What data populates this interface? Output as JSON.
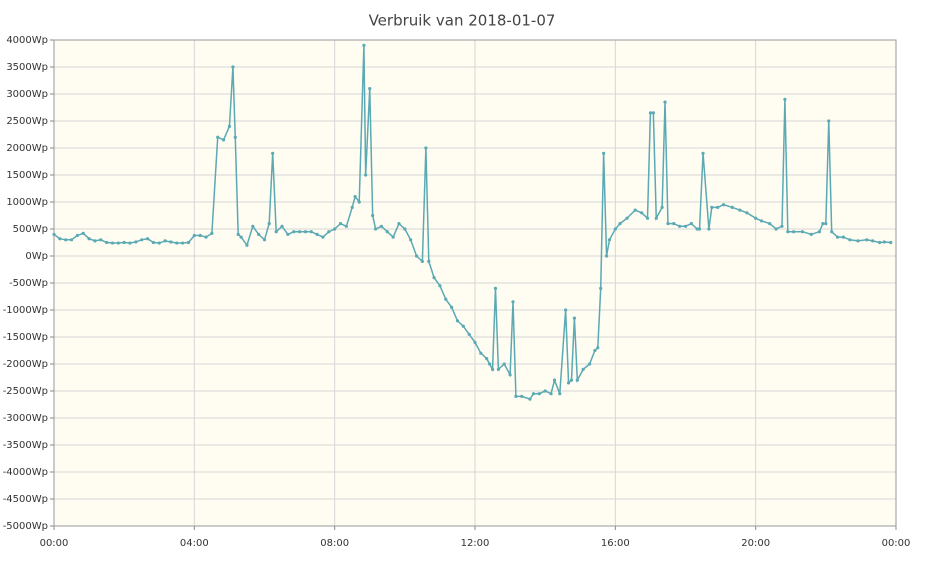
{
  "chart_data": {
    "type": "line",
    "title": "Verbruik van 2018-01-07",
    "color": "#5aa9b3",
    "grid": true,
    "xlim": [
      0,
      1440
    ],
    "xticks": [
      {
        "value": 0,
        "label": "00:00"
      },
      {
        "value": 240,
        "label": "04:00"
      },
      {
        "value": 480,
        "label": "08:00"
      },
      {
        "value": 720,
        "label": "12:00"
      },
      {
        "value": 960,
        "label": "16:00"
      },
      {
        "value": 1200,
        "label": "20:00"
      },
      {
        "value": 1440,
        "label": "00:00"
      }
    ],
    "ylim": [
      -5000,
      4000
    ],
    "yticks": [
      {
        "value": 4000,
        "label": "4000Wp"
      },
      {
        "value": 3500,
        "label": "3500Wp"
      },
      {
        "value": 3000,
        "label": "3000Wp"
      },
      {
        "value": 2500,
        "label": "2500Wp"
      },
      {
        "value": 2000,
        "label": "2000Wp"
      },
      {
        "value": 1500,
        "label": "1500Wp"
      },
      {
        "value": 1000,
        "label": "1000Wp"
      },
      {
        "value": 500,
        "label": "500Wp"
      },
      {
        "value": 0,
        "label": "0Wp"
      },
      {
        "value": -500,
        "label": "-500Wp"
      },
      {
        "value": -1000,
        "label": "-1000Wp"
      },
      {
        "value": -1500,
        "label": "-1500Wp"
      },
      {
        "value": -2000,
        "label": "-2000Wp"
      },
      {
        "value": -2500,
        "label": "-2500Wp"
      },
      {
        "value": -3000,
        "label": "-3000Wp"
      },
      {
        "value": -3500,
        "label": "-3500Wp"
      },
      {
        "value": -4000,
        "label": "-4000Wp"
      },
      {
        "value": -4500,
        "label": "-4500Wp"
      },
      {
        "value": -5000,
        "label": "-5000Wp"
      }
    ],
    "x": [
      0,
      10,
      20,
      30,
      40,
      50,
      60,
      70,
      80,
      90,
      100,
      110,
      120,
      130,
      140,
      150,
      160,
      170,
      180,
      190,
      200,
      210,
      220,
      230,
      240,
      250,
      260,
      270,
      280,
      290,
      300,
      306,
      310,
      315,
      320,
      330,
      340,
      350,
      360,
      368,
      374,
      380,
      390,
      400,
      410,
      420,
      430,
      440,
      450,
      460,
      470,
      480,
      490,
      500,
      510,
      515,
      522,
      530,
      533,
      540,
      545,
      550,
      560,
      570,
      580,
      590,
      600,
      610,
      620,
      630,
      636,
      641,
      650,
      660,
      670,
      680,
      690,
      700,
      710,
      720,
      730,
      740,
      745,
      750,
      755,
      760,
      770,
      780,
      785,
      790,
      800,
      814,
      820,
      830,
      840,
      850,
      856,
      865,
      875,
      880,
      885,
      890,
      895,
      905,
      916,
      925,
      930,
      935,
      940,
      945,
      950,
      960,
      968,
      980,
      994,
      1005,
      1015,
      1020,
      1025,
      1030,
      1040,
      1045,
      1050,
      1060,
      1070,
      1080,
      1090,
      1100,
      1104,
      1110,
      1120,
      1125,
      1135,
      1145,
      1160,
      1173,
      1185,
      1200,
      1210,
      1224,
      1235,
      1245,
      1250,
      1255,
      1265,
      1280,
      1295,
      1309,
      1315,
      1320,
      1325,
      1330,
      1340,
      1350,
      1361,
      1375,
      1390,
      1400,
      1412,
      1420,
      1431
    ],
    "values": [
      400,
      320,
      300,
      300,
      380,
      420,
      320,
      280,
      300,
      250,
      240,
      240,
      250,
      240,
      260,
      300,
      320,
      250,
      240,
      280,
      260,
      240,
      240,
      250,
      380,
      380,
      350,
      420,
      2200,
      2150,
      2400,
      3500,
      2200,
      400,
      350,
      200,
      550,
      400,
      300,
      600,
      1900,
      450,
      550,
      400,
      450,
      450,
      450,
      450,
      400,
      350,
      450,
      500,
      600,
      550,
      900,
      1100,
      1000,
      3900,
      1500,
      3100,
      750,
      500,
      550,
      450,
      350,
      600,
      500,
      300,
      0,
      -100,
      2000,
      -100,
      -400,
      -550,
      -800,
      -950,
      -1200,
      -1300,
      -1450,
      -1600,
      -1800,
      -1900,
      -2000,
      -2100,
      -600,
      -2100,
      -2000,
      -2200,
      -850,
      -2600,
      -2600,
      -2650,
      -2550,
      -2550,
      -2500,
      -2550,
      -2300,
      -2550,
      -1000,
      -2350,
      -2300,
      -1150,
      -2300,
      -2100,
      -2000,
      -1750,
      -1700,
      -600,
      1900,
      0,
      300,
      500,
      600,
      700,
      850,
      800,
      700,
      2650,
      2650,
      700,
      900,
      2850,
      600,
      600,
      550,
      550,
      600,
      500,
      500,
      1900,
      500,
      900,
      900,
      950,
      900,
      850,
      800,
      700,
      650,
      600,
      500,
      550,
      2900,
      450,
      450,
      450,
      400,
      450,
      600,
      600,
      2500,
      450,
      350,
      350,
      300,
      280,
      300,
      280,
      250,
      260,
      250
    ]
  }
}
